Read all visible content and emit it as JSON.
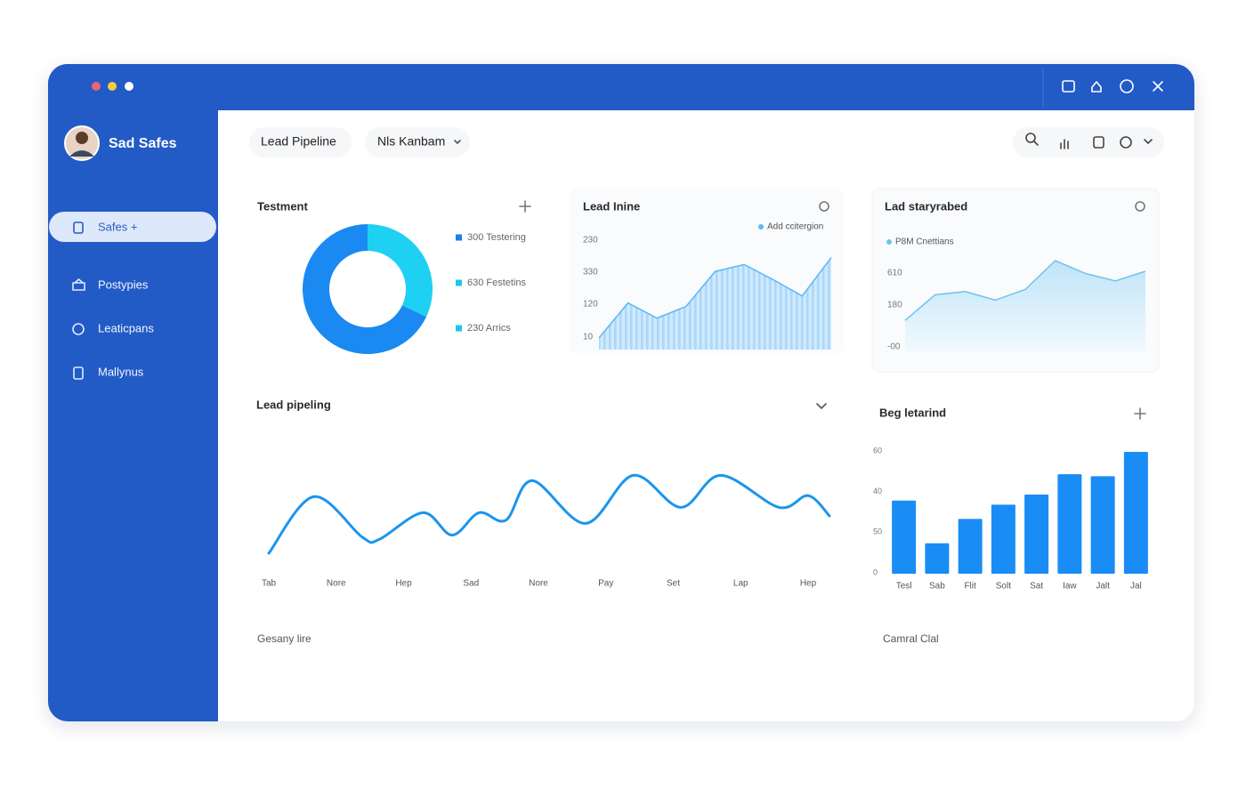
{
  "window": {
    "brand": "Sad Safes",
    "nav": [
      "Safes +",
      "Postypies",
      "Leaticpans",
      "Mallynus"
    ],
    "tabs": [
      "Lead Pipeline",
      "Nls Kanbam"
    ]
  },
  "chart_data": [
    {
      "type": "pie",
      "title": "Testment",
      "values": [
        32,
        68
      ],
      "colors": [
        "#1ed0f2",
        "#1a8af2"
      ],
      "legend": [
        {
          "label": "300 Testering",
          "color": "#1a7fe8"
        },
        {
          "label": "630 Festetins",
          "color": "#1ec4ee"
        },
        {
          "label": "230 Arrics",
          "color": "#1ec4ee"
        }
      ]
    },
    {
      "type": "area",
      "title": "Lead Inine",
      "legend": "Add ccitergion",
      "color": "#5ab8f5",
      "y_labels": [
        "230",
        "330",
        "120",
        "10"
      ],
      "ylim": [
        0,
        100
      ],
      "values": [
        10,
        40,
        27,
        37,
        67,
        73,
        60,
        46,
        79
      ]
    },
    {
      "type": "area",
      "title": "Lad staryrabed",
      "legend": "P8M Cnettians",
      "color": "#6cc3f0",
      "y_labels": [
        "610",
        "180",
        "-00"
      ],
      "ylim": [
        0,
        100
      ],
      "values": [
        29,
        53,
        56,
        48,
        58,
        85,
        73,
        66,
        75
      ]
    },
    {
      "type": "line",
      "title": "Lead pipeling",
      "color": "#1a95ee",
      "x_labels": [
        "Tab",
        "Nore",
        "Hep",
        "Sad",
        "Nore",
        "Pay",
        "Set",
        "Lap",
        "Hep"
      ],
      "xlim": [
        0,
        100
      ],
      "ylim": [
        0,
        100
      ],
      "x": [
        0,
        8,
        16.7,
        19.7,
        27.5,
        32.7,
        37.5,
        42.3,
        47,
        56.5,
        65,
        73.5,
        80.6,
        91,
        96.2,
        100
      ],
      "values": [
        15,
        68,
        30,
        28,
        53,
        32,
        53,
        46,
        83,
        43,
        88,
        58,
        88,
        58,
        69,
        50
      ]
    },
    {
      "type": "bar",
      "title": "Beg letarind",
      "color": "#1a8cf5",
      "y_labels": [
        "60",
        "40",
        "50",
        "0"
      ],
      "ylim": [
        0,
        60
      ],
      "categories": [
        "Tesl",
        "Sab",
        "Flit",
        "Solt",
        "Sat",
        "Iaw",
        "Jalt",
        "Jal"
      ],
      "values": [
        36,
        15,
        27,
        34,
        39,
        49,
        48,
        60
      ]
    }
  ],
  "footer": [
    "Gesany lire",
    "Camral Clal"
  ]
}
